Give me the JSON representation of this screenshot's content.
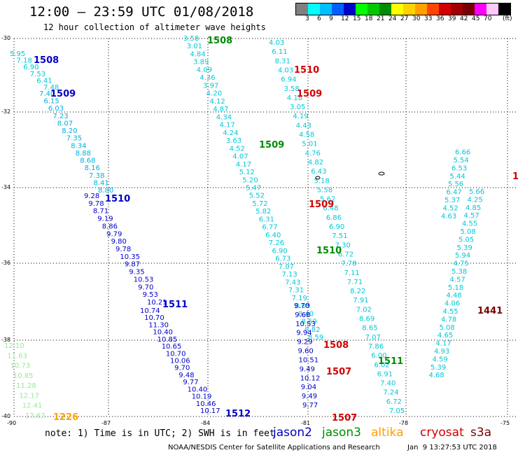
{
  "header": {
    "title": "12:00 – 23:59 UTC 01/08/2018",
    "subtitle": "12 hour collection of altimeter wave heights"
  },
  "colorbar": {
    "colors": [
      "#808080",
      "#00ffff",
      "#00bfff",
      "#0060ff",
      "#0000c8",
      "#00ff00",
      "#00c800",
      "#008c00",
      "#ffff00",
      "#ffd200",
      "#ffa000",
      "#ff4600",
      "#d20000",
      "#a00000",
      "#780000",
      "#ff00ff",
      "#ffc8ff",
      "#000000"
    ],
    "labels": [
      "3",
      "6",
      "9",
      "12",
      "15",
      "18",
      "21",
      "24",
      "27",
      "30",
      "33",
      "36",
      "39",
      "42",
      "45",
      "70"
    ],
    "unit": "(ft)"
  },
  "axes": {
    "lat_labels": [
      "-30",
      "-32",
      "-34",
      "-36",
      "-38",
      "-40"
    ],
    "lon_labels": [
      "-90",
      "-87",
      "-84",
      "-81",
      "-78",
      "-75"
    ]
  },
  "tracks": [
    {
      "satellite": "jason2",
      "color": "#0000c8",
      "time": "1508",
      "values": [
        "5.95",
        "7.18",
        "6.90",
        "7.53",
        "6.41",
        "7.48"
      ]
    },
    {
      "satellite": "jason2",
      "color": "#0000c8",
      "time": "1509",
      "values": [
        "7.40",
        "6.15",
        "6.03",
        "7.23",
        "8.07",
        "8.20",
        "7.35",
        "8.34",
        "8.88",
        "8.68",
        "8.16",
        "7.38",
        "8.41",
        "8.80"
      ]
    },
    {
      "satellite": "jason2",
      "color": "#0000c8",
      "time": "1510",
      "values": [
        "9.28",
        "9.78",
        "8.71",
        "9.19",
        "8.86",
        "9.79",
        "9.80",
        "9.78",
        "10.35",
        "9.87",
        "9.35",
        "10.53",
        "9.70",
        "9.53",
        "10.21"
      ]
    },
    {
      "satellite": "jason2",
      "color": "#0000c8",
      "time": "1511",
      "values": [
        "10.74",
        "10.70",
        "11.30",
        "10.40",
        "10.85",
        "10.65",
        "10.70",
        "10.06",
        "9.70",
        "9.48",
        "9.77",
        "10.40",
        "10.19",
        "10.46",
        "10.17"
      ]
    },
    {
      "satellite": "jason2",
      "color": "#0000c8",
      "time": "1512",
      "values": []
    },
    {
      "satellite": "jason3",
      "color": "#008c00",
      "time": "1508",
      "values": [
        "3.58",
        "3.01",
        "4.84",
        "3.89",
        "4.09",
        "4.36",
        "3.97",
        "4.20",
        "4.12",
        "4.87",
        "4.34",
        "4.17",
        "4.24",
        "3.63",
        "4.52",
        "4.07",
        "4.17",
        "5.12",
        "5.20",
        "5.47",
        "5.52",
        "5.72",
        "5.82",
        "6.31",
        "6.77",
        "6.40",
        "7.26",
        "6.90",
        "6.73",
        "7.07",
        "7.13",
        "7.43",
        "7.31",
        "7.19",
        "8.09",
        "8.40",
        "8.59",
        "8.82",
        "8.59"
      ]
    },
    {
      "satellite": "jason3",
      "color": "#008c00",
      "time": "1509",
      "values": [
        "4.03",
        "6.11",
        "8.31",
        "4.03",
        "6.94",
        "3.58",
        "4.18",
        "3.05",
        "4.19",
        "4.43",
        "4.58",
        "5.01",
        "4.76",
        "4.82",
        "6.43",
        "5.18",
        "5.58",
        "5.62",
        "6.48",
        "6.86",
        "6.90",
        "7.51",
        "7.30",
        "6.72",
        "7.78",
        "7.11",
        "7.71",
        "8.22",
        "7.91",
        "7.02",
        "8.69",
        "8.65",
        "7.07",
        "7.86",
        "6.00",
        "6.02",
        "6.91",
        "7.40",
        "7.24",
        "6.72",
        "7.05"
      ]
    },
    {
      "satellite": "jason3",
      "color": "#008c00",
      "time": "1510",
      "values": [
        "9.70",
        "9.68",
        "10.53",
        "9.94",
        "9.29",
        "9.60",
        "10.51",
        "9.49",
        "10.12",
        "9.04",
        "9.49",
        "9.77"
      ]
    },
    {
      "satellite": "jason3",
      "color": "#008c00",
      "time": "1511",
      "values": []
    },
    {
      "satellite": "jason3",
      "color": "#90ee90",
      "time": "1226",
      "values": [
        "12.10",
        "11.63",
        "10.73",
        "10.85",
        "11.28",
        "12.17",
        "12.41",
        "12.62"
      ]
    },
    {
      "satellite": "cryosat",
      "color": "#d20000",
      "time": "1510",
      "values": []
    },
    {
      "satellite": "cryosat",
      "color": "#d20000",
      "time": "1509",
      "values": []
    },
    {
      "satellite": "cryosat",
      "color": "#d20000",
      "time": "1508",
      "values": []
    },
    {
      "satellite": "cryosat",
      "color": "#d20000",
      "time": "1507",
      "values": []
    },
    {
      "satellite": "s3a",
      "color": "#780000",
      "time": "1441",
      "values": [
        "5.66",
        "4.25",
        "4.85",
        "4.57",
        "4.55",
        "5.08",
        "5.05",
        "5.39",
        "5.94",
        "4.75",
        "5.38",
        "4.57",
        "5.18",
        "4.48",
        "4.06",
        "4.55",
        "4.78",
        "5.08",
        "4.65",
        "4.17",
        "4.93",
        "4.59",
        "5.39",
        "4.68",
        "6.66",
        "5.54",
        "6.53",
        "5.44",
        "5.56",
        "6.47",
        "5.37",
        "4.52",
        "4.63"
      ]
    }
  ],
  "time_labels": [
    {
      "text": "1508",
      "color": "#0000c8"
    },
    {
      "text": "1509",
      "color": "#0000c8"
    },
    {
      "text": "1510",
      "color": "#0000c8"
    },
    {
      "text": "1511",
      "color": "#0000c8"
    },
    {
      "text": "1512",
      "color": "#0000c8"
    },
    {
      "text": "1508",
      "color": "#008c00"
    },
    {
      "text": "1509",
      "color": "#008c00"
    },
    {
      "text": "1510",
      "color": "#008c00"
    },
    {
      "text": "1511",
      "color": "#008c00"
    },
    {
      "text": "1510",
      "color": "#d20000"
    },
    {
      "text": "1509",
      "color": "#d20000"
    },
    {
      "text": "1509",
      "color": "#d20000"
    },
    {
      "text": "1508",
      "color": "#d20000"
    },
    {
      "text": "1507",
      "color": "#d20000"
    },
    {
      "text": "1507",
      "color": "#d20000"
    },
    {
      "text": "1441",
      "color": "#780000"
    },
    {
      "text": "1226",
      "color": "#ffa000"
    },
    {
      "text": "1",
      "color": "#d20000"
    }
  ],
  "footer": {
    "note": "note: 1) Time is in UTC; 2) SWH is in feet",
    "legend": [
      {
        "label": "jason2",
        "color": "#0000c8"
      },
      {
        "label": "jason3",
        "color": "#008c00"
      },
      {
        "label": "altika",
        "color": "#ffa000"
      },
      {
        "label": "cryosat",
        "color": "#d20000"
      },
      {
        "label": "s3a",
        "color": "#780000"
      }
    ],
    "credit": "NOAA/NESDIS Center for Satellite Applications and Research",
    "timestamp": "Jan  9 13:27:53 UTC 2018"
  }
}
